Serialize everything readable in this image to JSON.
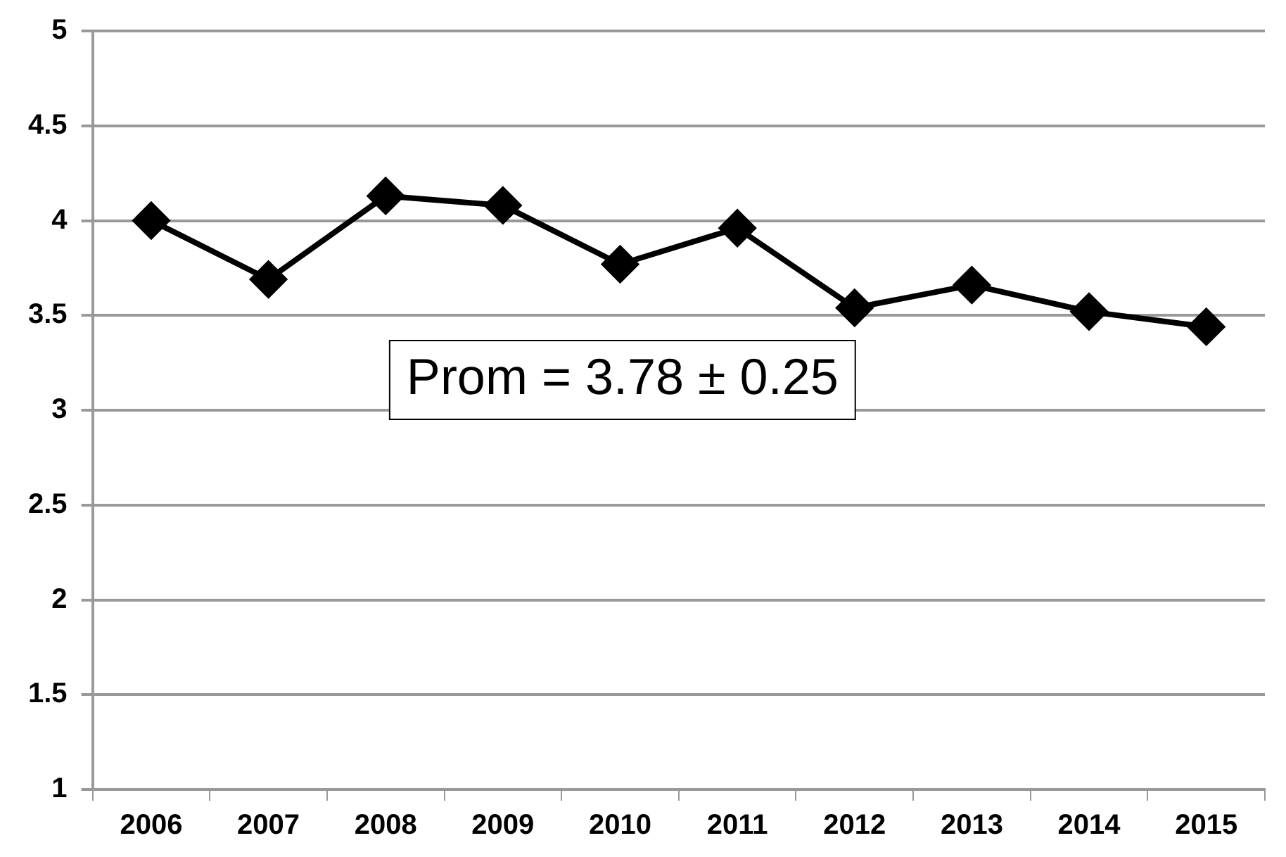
{
  "chart_data": {
    "type": "line",
    "categories": [
      "2006",
      "2007",
      "2008",
      "2009",
      "2010",
      "2011",
      "2012",
      "2013",
      "2014",
      "2015"
    ],
    "series": [
      {
        "color": "#000000",
        "values": [
          4.0,
          3.69,
          4.13,
          4.08,
          3.77,
          3.96,
          3.54,
          3.66,
          3.52,
          3.44
        ]
      }
    ],
    "ylim": [
      1,
      5
    ],
    "yticks": [
      1,
      1.5,
      2,
      2.5,
      3,
      3.5,
      4,
      4.5,
      5
    ],
    "grid": "y",
    "legend": false,
    "marker": "diamond",
    "line_style": "solid",
    "annotations": [
      "Prom = 3.78 ± 0.25"
    ]
  }
}
